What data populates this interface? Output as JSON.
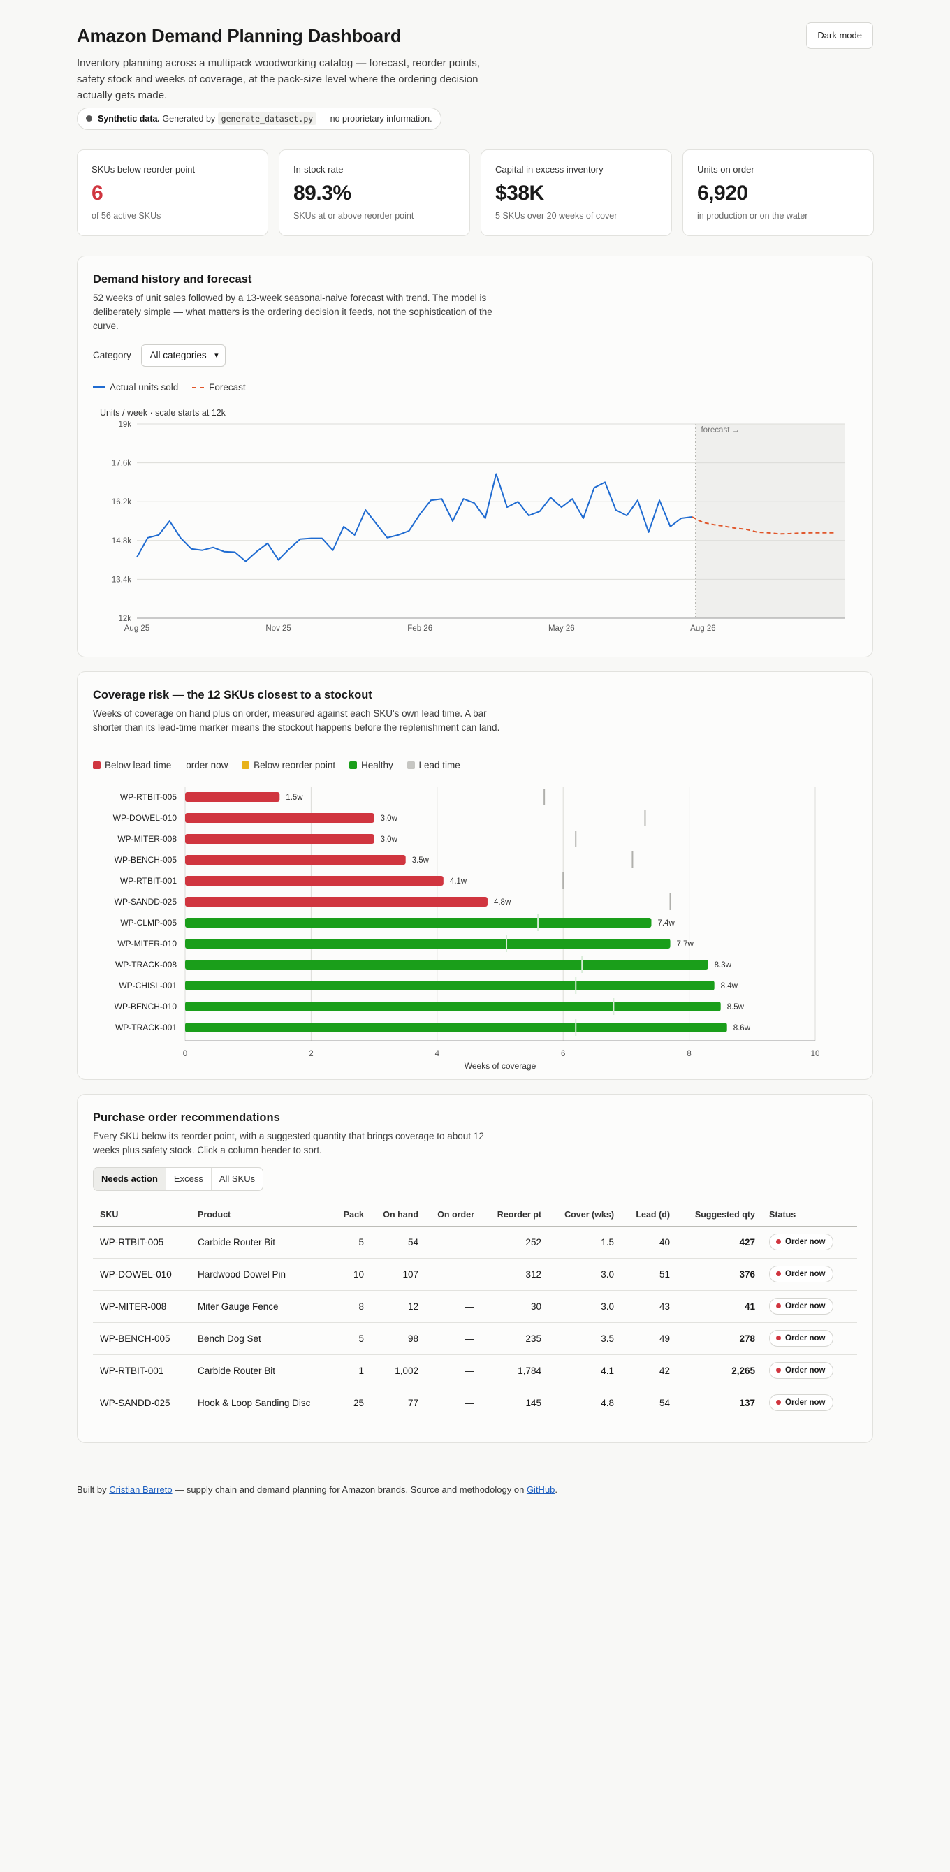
{
  "header": {
    "title": "Amazon Demand Planning Dashboard",
    "subtitle": "Inventory planning across a multipack woodworking catalog — forecast, reorder points, safety stock and weeks of coverage, at the pack-size level where the ordering decision actually gets made.",
    "dark_mode_label": "Dark mode"
  },
  "synthetic": {
    "bold": "Synthetic data.",
    "pre": "Generated by",
    "code": "generate_dataset.py",
    "post": "— no proprietary information."
  },
  "kpis": [
    {
      "label": "SKUs below reorder point",
      "value": "6",
      "sub": "of 56 active SKUs",
      "alert": true
    },
    {
      "label": "In-stock rate",
      "value": "89.3%",
      "sub": "SKUs at or above reorder point"
    },
    {
      "label": "Capital in excess inventory",
      "value": "$38K",
      "sub": "5 SKUs over 20 weeks of cover"
    },
    {
      "label": "Units on order",
      "value": "6,920",
      "sub": "in production or on the water"
    }
  ],
  "forecast_section": {
    "title": "Demand history and forecast",
    "description": "52 weeks of unit sales followed by a 13-week seasonal-naive forecast with trend. The model is deliberately simple — what matters is the ordering decision it feeds, not the sophistication of the curve.",
    "category_label": "Category",
    "category_selected": "All categories",
    "legend": {
      "actual": "Actual units sold",
      "forecast": "Forecast"
    },
    "axis_note": "Units / week · scale starts at 12k",
    "forecast_band_label": "forecast →"
  },
  "coverage_section": {
    "title": "Coverage risk — the 12 SKUs closest to a stockout",
    "description": "Weeks of coverage on hand plus on order, measured against each SKU's own lead time. A bar shorter than its lead-time marker means the stockout happens before the replenishment can land.",
    "legend": {
      "below_lead": "Below lead time — order now",
      "below_reorder": "Below reorder point",
      "healthy": "Healthy",
      "lead_time": "Lead time"
    }
  },
  "po_section": {
    "title": "Purchase order recommendations",
    "description": "Every SKU below its reorder point, with a suggested quantity that brings coverage to about 12 weeks plus safety stock. Click a column header to sort.",
    "tabs": [
      "Needs action",
      "Excess",
      "All SKUs"
    ],
    "columns": {
      "sku": "SKU",
      "product": "Product",
      "pack": "Pack",
      "on_hand": "On hand",
      "on_order": "On order",
      "reorder_pt": "Reorder pt",
      "cover": "Cover (wks)",
      "lead": "Lead (d)",
      "suggested": "Suggested qty",
      "status": "Status"
    },
    "rows": [
      {
        "sku": "WP-RTBIT-005",
        "product": "Carbide Router Bit",
        "pack": "5",
        "on_hand": "54",
        "on_order": "—",
        "reorder_pt": "252",
        "cover": "1.5",
        "lead": "40",
        "suggested": "427",
        "status": "Order now"
      },
      {
        "sku": "WP-DOWEL-010",
        "product": "Hardwood Dowel Pin",
        "pack": "10",
        "on_hand": "107",
        "on_order": "—",
        "reorder_pt": "312",
        "cover": "3.0",
        "lead": "51",
        "suggested": "376",
        "status": "Order now"
      },
      {
        "sku": "WP-MITER-008",
        "product": "Miter Gauge Fence",
        "pack": "8",
        "on_hand": "12",
        "on_order": "—",
        "reorder_pt": "30",
        "cover": "3.0",
        "lead": "43",
        "suggested": "41",
        "status": "Order now"
      },
      {
        "sku": "WP-BENCH-005",
        "product": "Bench Dog Set",
        "pack": "5",
        "on_hand": "98",
        "on_order": "—",
        "reorder_pt": "235",
        "cover": "3.5",
        "lead": "49",
        "suggested": "278",
        "status": "Order now"
      },
      {
        "sku": "WP-RTBIT-001",
        "product": "Carbide Router Bit",
        "pack": "1",
        "on_hand": "1,002",
        "on_order": "—",
        "reorder_pt": "1,784",
        "cover": "4.1",
        "lead": "42",
        "suggested": "2,265",
        "status": "Order now"
      },
      {
        "sku": "WP-SANDD-025",
        "product": "Hook & Loop Sanding Disc",
        "pack": "25",
        "on_hand": "77",
        "on_order": "—",
        "reorder_pt": "145",
        "cover": "4.8",
        "lead": "54",
        "suggested": "137",
        "status": "Order now"
      }
    ]
  },
  "footer": {
    "pre": "Built by",
    "author": "Cristian Barreto",
    "mid": "— supply chain and demand planning for Amazon brands. Source and methodology on",
    "link": "GitHub",
    "post": "."
  },
  "colors": {
    "actual": "#1f6bd1",
    "forecast": "#e0562a",
    "red": "#d0353f",
    "amber": "#e8b21a",
    "green": "#1a9e1a",
    "lead": "#bdbdb8"
  },
  "chart_data": [
    {
      "type": "line",
      "title": "Demand history and forecast",
      "ylabel": "Units / week",
      "ylim": [
        12000,
        19000
      ],
      "yticks": [
        12000,
        13400,
        14800,
        16200,
        17600,
        19000
      ],
      "ytick_labels": [
        "12k",
        "13.4k",
        "14.8k",
        "16.2k",
        "17.6k",
        "19k"
      ],
      "xtick_labels": [
        "Aug 25",
        "Nov 25",
        "Feb 26",
        "May 26",
        "Aug 26"
      ],
      "xtick_weeks": [
        0,
        13,
        26,
        39,
        52
      ],
      "series": [
        {
          "name": "Actual units sold",
          "x_start_week": 0,
          "values": [
            14200,
            14900,
            15000,
            15500,
            14900,
            14500,
            14450,
            14550,
            14400,
            14380,
            14050,
            14400,
            14700,
            14100,
            14500,
            14850,
            14880,
            14880,
            14450,
            15300,
            15000,
            15900,
            15400,
            14900,
            15000,
            15150,
            15750,
            16250,
            16300,
            15500,
            16300,
            16150,
            15600,
            17200,
            16000,
            16200,
            15700,
            15850,
            16350,
            16000,
            16300,
            15600,
            16700,
            16900,
            15900,
            15700,
            16250,
            15100,
            16250,
            15300,
            15600,
            15650
          ]
        },
        {
          "name": "Forecast",
          "x_start_week": 51,
          "values": [
            15650,
            15450,
            15370,
            15310,
            15240,
            15200,
            15100,
            15080,
            15040,
            15050,
            15070,
            15080,
            15080,
            15080
          ]
        }
      ]
    },
    {
      "type": "bar",
      "orientation": "horizontal",
      "title": "Coverage risk — the 12 SKUs closest to a stockout",
      "xlabel": "Weeks of coverage",
      "xlim": [
        0,
        10
      ],
      "xticks": [
        0,
        2,
        4,
        6,
        8,
        10
      ],
      "categories": [
        "WP-RTBIT-005",
        "WP-DOWEL-010",
        "WP-MITER-008",
        "WP-BENCH-005",
        "WP-RTBIT-001",
        "WP-SANDD-025",
        "WP-CLMP-005",
        "WP-MITER-010",
        "WP-TRACK-008",
        "WP-CHISL-001",
        "WP-BENCH-010",
        "WP-TRACK-001"
      ],
      "values": [
        1.5,
        3.0,
        3.0,
        3.5,
        4.1,
        4.8,
        7.4,
        7.7,
        8.3,
        8.4,
        8.5,
        8.6
      ],
      "value_labels": [
        "1.5w",
        "3.0w",
        "3.0w",
        "3.5w",
        "4.1w",
        "4.8w",
        "7.4w",
        "7.7w",
        "8.3w",
        "8.4w",
        "8.5w",
        "8.6w"
      ],
      "status": [
        "below_lead",
        "below_lead",
        "below_lead",
        "below_lead",
        "below_lead",
        "below_lead",
        "healthy",
        "healthy",
        "healthy",
        "healthy",
        "healthy",
        "healthy"
      ],
      "lead_time_weeks": [
        5.7,
        7.3,
        6.2,
        7.1,
        6.0,
        7.7,
        5.6,
        5.1,
        6.3,
        6.2,
        6.8,
        6.2
      ]
    }
  ]
}
